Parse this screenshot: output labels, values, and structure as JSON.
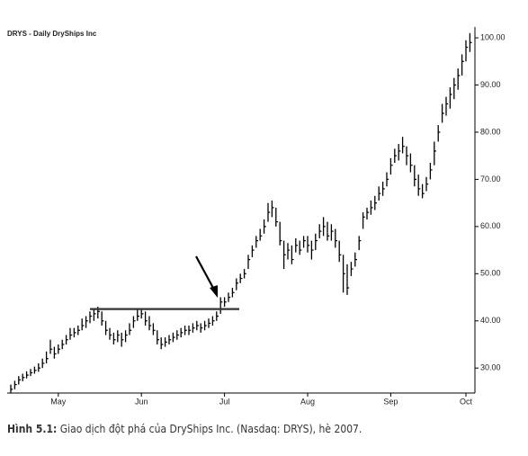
{
  "chart_data": {
    "type": "hlc",
    "title": "DRYS - Daily  DryShips Inc",
    "categories": [
      null,
      null,
      null,
      null,
      null,
      null,
      null,
      null,
      null,
      null,
      null,
      null,
      "May",
      null,
      null,
      null,
      null,
      null,
      null,
      null,
      null,
      null,
      null,
      null,
      null,
      null,
      null,
      null,
      null,
      null,
      null,
      null,
      null,
      "Jun",
      null,
      null,
      null,
      null,
      null,
      null,
      null,
      null,
      null,
      null,
      null,
      null,
      null,
      null,
      null,
      null,
      null,
      null,
      null,
      null,
      "Jul",
      null,
      null,
      null,
      null,
      null,
      null,
      null,
      null,
      null,
      null,
      null,
      null,
      null,
      null,
      null,
      null,
      null,
      null,
      null,
      null,
      "Aug",
      null,
      null,
      null,
      null,
      null,
      null,
      null,
      null,
      null,
      null,
      null,
      null,
      null,
      null,
      null,
      null,
      null,
      null,
      null,
      null,
      "Sep",
      null,
      null,
      null,
      null,
      null,
      null,
      null,
      null,
      null,
      null,
      null,
      null,
      null,
      null,
      null,
      null,
      null,
      null,
      "Oct",
      null
    ],
    "high": [
      26.5,
      27.3,
      28.3,
      28.8,
      29.3,
      29.8,
      30.3,
      31,
      32,
      33.5,
      36,
      34.5,
      35,
      36,
      37,
      38.5,
      38.5,
      39,
      40.5,
      41,
      42,
      42.5,
      43,
      42,
      40,
      38.5,
      37.5,
      38,
      37.5,
      38,
      39.5,
      41,
      42.5,
      42.5,
      42,
      41,
      39.5,
      38,
      36.5,
      36.5,
      37,
      37.5,
      38,
      38.5,
      39,
      39,
      39.5,
      40,
      39.5,
      40,
      40.5,
      41,
      42,
      45,
      45,
      46,
      47,
      49,
      50,
      51,
      54,
      56,
      58,
      59.5,
      61.5,
      65,
      65.5,
      64,
      61,
      57,
      56.5,
      56,
      57.5,
      57,
      58,
      58,
      57,
      58.5,
      60.5,
      62,
      61,
      60.5,
      59.5,
      57,
      54,
      52,
      52.5,
      54.5,
      58,
      63,
      64,
      65.5,
      66.5,
      68.5,
      69.5,
      71.5,
      74.5,
      76.5,
      77.5,
      79,
      77,
      75.5,
      73,
      71,
      69,
      70.5,
      73.5,
      78,
      81.5,
      86,
      87.5,
      89.5,
      91.5,
      93.5,
      96.5,
      99.5,
      101
    ],
    "low": [
      24.8,
      25.5,
      26.5,
      27.2,
      27.8,
      28.3,
      28.8,
      29.2,
      30,
      31,
      33,
      32,
      33,
      34,
      35,
      36,
      36.5,
      37,
      38,
      38.5,
      39.5,
      40,
      40.5,
      39,
      37,
      36,
      35,
      35.5,
      34.5,
      35.5,
      37,
      38.5,
      40,
      40.5,
      39,
      38,
      37,
      35,
      34,
      34.5,
      35,
      35.5,
      36,
      36.5,
      37,
      37,
      37.5,
      38,
      37.5,
      38,
      38.5,
      39,
      40,
      41.5,
      43,
      44,
      45,
      46.5,
      48,
      49,
      51,
      53.5,
      55.5,
      57,
      58.5,
      61,
      62,
      60,
      56,
      51,
      53,
      52,
      54.5,
      54,
      55.5,
      54.5,
      53,
      55,
      57.5,
      58,
      57,
      57,
      55.5,
      52.5,
      46,
      45.5,
      49.5,
      51.5,
      55,
      59.5,
      61.5,
      62.5,
      63.5,
      65.5,
      66.5,
      68.5,
      71,
      73.5,
      74,
      75.5,
      73,
      71.5,
      68.5,
      66.5,
      66,
      67.5,
      70,
      73,
      78,
      82,
      83.5,
      85,
      87,
      89,
      92,
      95,
      97
    ],
    "close": [
      25.5,
      26.5,
      27.5,
      28,
      28.5,
      29,
      29.5,
      30,
      31,
      32,
      34,
      33,
      34,
      35,
      36,
      37,
      37.5,
      38,
      39,
      40,
      41,
      41.5,
      42,
      40,
      38,
      37,
      36,
      37,
      36,
      37,
      38,
      40,
      41,
      41.5,
      40,
      39,
      38,
      36,
      35,
      35.5,
      36,
      36.5,
      37,
      37.5,
      38,
      38,
      38.5,
      39,
      38.5,
      39,
      39.5,
      40,
      41,
      44,
      44,
      45,
      46,
      48,
      49,
      50,
      53,
      55,
      57,
      58,
      60,
      63,
      64,
      61,
      57,
      54,
      55,
      53,
      56,
      55,
      57,
      56,
      55,
      57,
      59,
      60,
      58,
      59,
      57,
      54,
      50,
      47,
      51,
      53,
      57,
      62,
      63,
      64,
      65,
      67,
      68,
      70,
      73,
      75,
      76,
      77,
      75,
      73,
      70,
      68,
      67,
      69,
      72,
      76,
      80,
      84,
      86,
      88,
      90,
      92,
      95,
      98,
      99
    ],
    "color": "#000000",
    "resistance": 42.5,
    "ylim": [
      24.7,
      102.3
    ],
    "yticks": [
      {
        "value": 30,
        "label": "30.00"
      },
      {
        "value": 40,
        "label": "40.00"
      },
      {
        "value": 50,
        "label": "50.00"
      },
      {
        "value": 60,
        "label": "60.00"
      },
      {
        "value": 70,
        "label": "70.00"
      },
      {
        "value": 80,
        "label": "80.00"
      },
      {
        "value": 90,
        "label": "90.00"
      },
      {
        "value": 100,
        "label": "100.00"
      }
    ],
    "caption_label": "Hình 5.1:",
    "caption_text": " Giao dịch đột phá của DryShips Inc. (Nasdaq: DRYS), hè 2007."
  }
}
